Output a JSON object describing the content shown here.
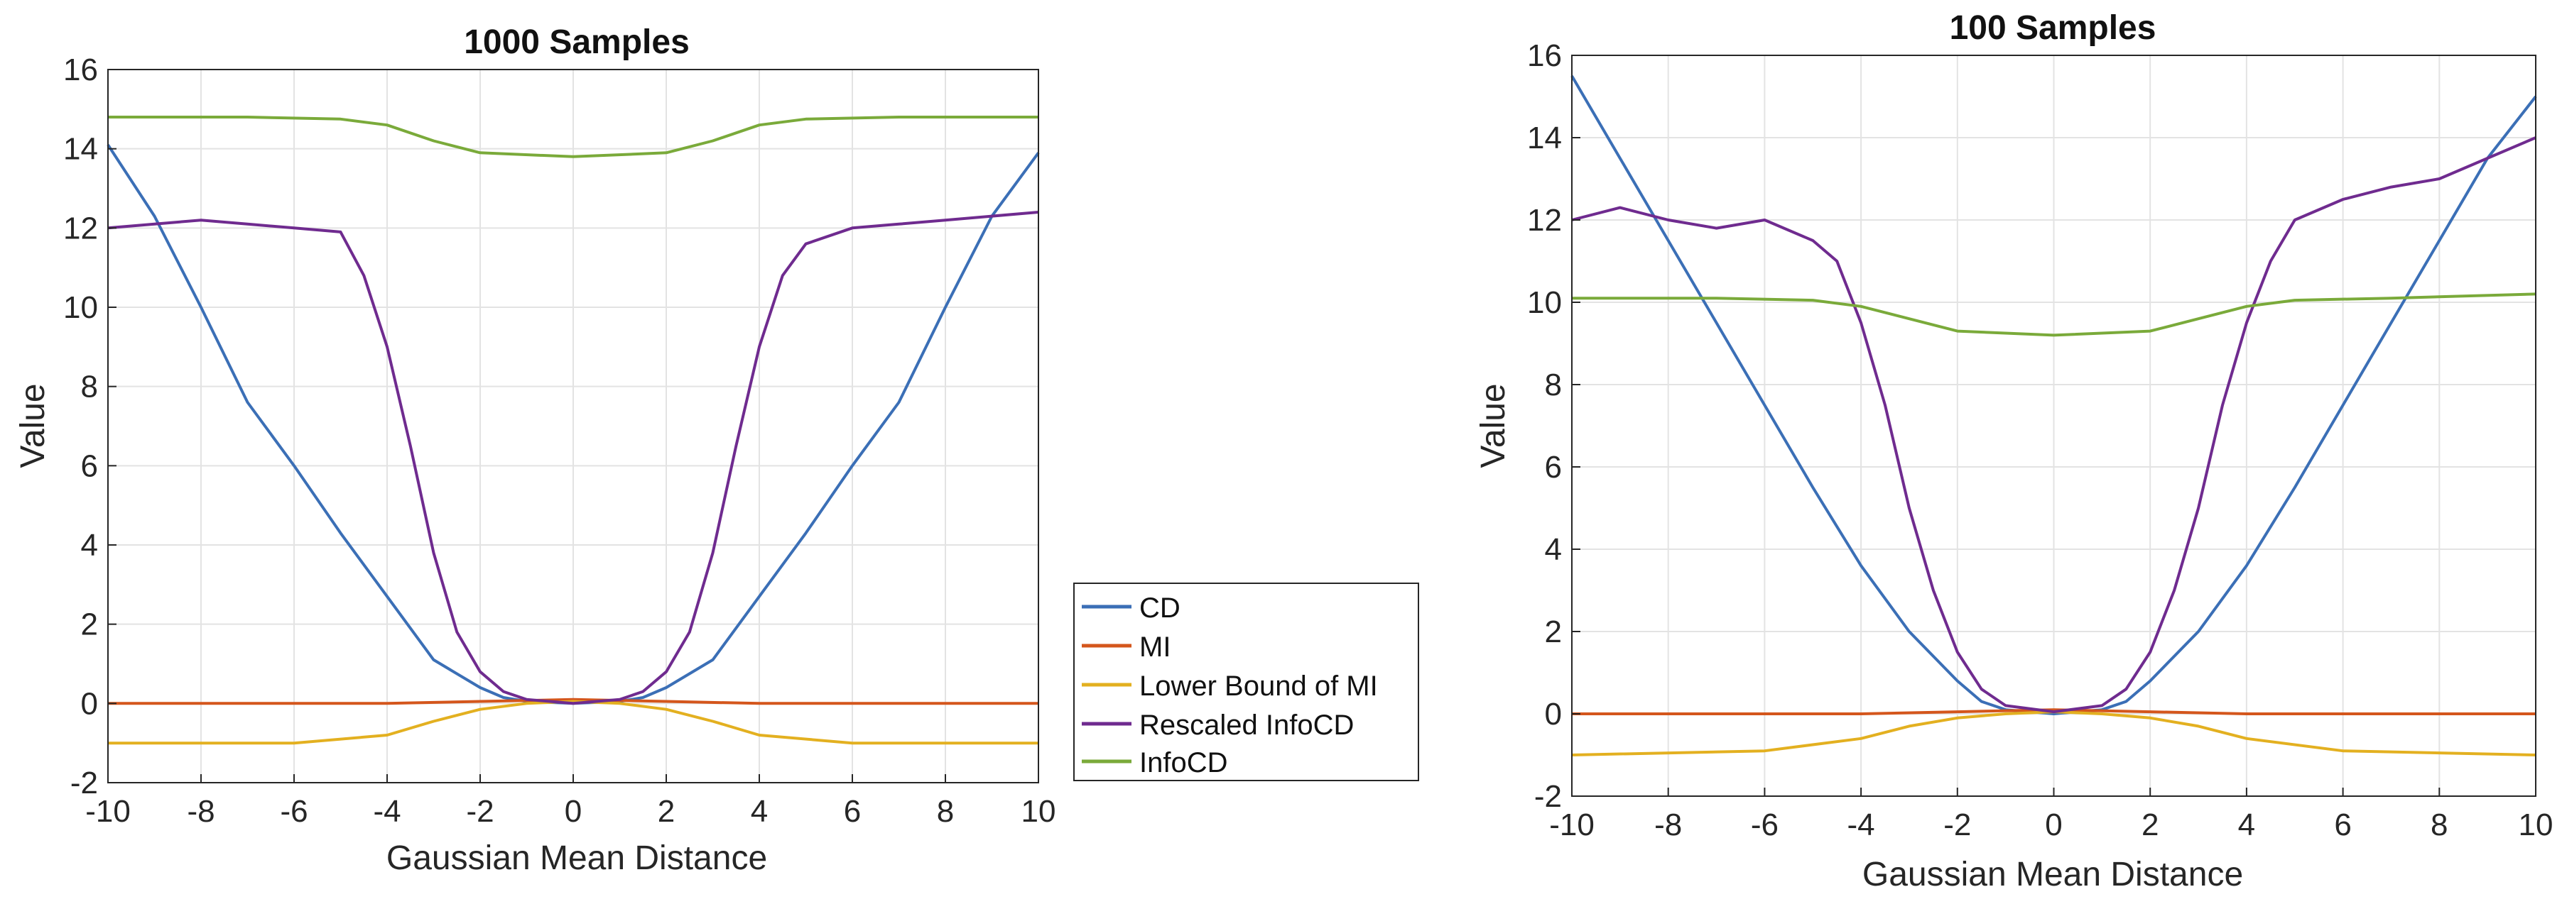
{
  "figure": {
    "background": "#ffffff"
  },
  "legend": {
    "entries": [
      {
        "label": "CD",
        "color": "#3b6fb6"
      },
      {
        "label": "MI",
        "color": "#d4561c"
      },
      {
        "label": "Lower Bound of MI",
        "color": "#e3b020"
      },
      {
        "label": "Rescaled InfoCD",
        "color": "#6f2b8f"
      },
      {
        "label": "InfoCD",
        "color": "#7aaa3a"
      }
    ]
  },
  "chart_data": [
    {
      "type": "line",
      "title": "1000 Samples",
      "xlabel": "Gaussian Mean Distance",
      "ylabel": "Value",
      "xlim": [
        -10,
        10
      ],
      "ylim": [
        -2,
        16
      ],
      "xticks": [
        -10,
        -8,
        -6,
        -4,
        -2,
        0,
        2,
        4,
        6,
        8,
        10
      ],
      "yticks": [
        -2,
        0,
        2,
        4,
        6,
        8,
        10,
        12,
        14,
        16
      ],
      "grid": true,
      "legend_position": "outside-right",
      "series": [
        {
          "name": "CD",
          "color": "#3b6fb6",
          "x": [
            -10,
            -9,
            -8,
            -7,
            -6,
            -5,
            -4,
            -3,
            -2,
            -1.5,
            -1,
            0,
            1,
            1.5,
            2,
            3,
            4,
            5,
            6,
            7,
            8,
            9,
            10
          ],
          "y": [
            14.1,
            12.3,
            10.0,
            7.6,
            6.0,
            4.3,
            2.7,
            1.1,
            0.4,
            0.15,
            0.05,
            0.0,
            0.05,
            0.15,
            0.4,
            1.1,
            2.7,
            4.3,
            6.0,
            7.6,
            10.0,
            12.3,
            13.9
          ]
        },
        {
          "name": "MI",
          "color": "#d4561c",
          "x": [
            -10,
            -4,
            -2,
            0,
            2,
            4,
            10
          ],
          "y": [
            0.0,
            0.0,
            0.05,
            0.1,
            0.05,
            0.0,
            0.0
          ]
        },
        {
          "name": "Lower Bound of MI",
          "color": "#e3b020",
          "x": [
            -10,
            -6,
            -4,
            -3,
            -2,
            -1,
            0,
            1,
            2,
            3,
            4,
            6,
            10
          ],
          "y": [
            -1.0,
            -1.0,
            -0.8,
            -0.45,
            -0.15,
            0.0,
            0.05,
            0.0,
            -0.15,
            -0.45,
            -0.8,
            -1.0,
            -1.0
          ]
        },
        {
          "name": "Rescaled InfoCD",
          "color": "#6f2b8f",
          "x": [
            -10,
            -9,
            -8,
            -7,
            -6,
            -5,
            -4.5,
            -4,
            -3.5,
            -3,
            -2.5,
            -2,
            -1.5,
            -1,
            0,
            1,
            1.5,
            2,
            2.5,
            3,
            3.5,
            4,
            4.5,
            5,
            6,
            7,
            8,
            9,
            10
          ],
          "y": [
            12.0,
            12.1,
            12.2,
            12.1,
            12.0,
            11.9,
            10.8,
            9.0,
            6.5,
            3.8,
            1.8,
            0.8,
            0.3,
            0.1,
            0.0,
            0.1,
            0.3,
            0.8,
            1.8,
            3.8,
            6.5,
            9.0,
            10.8,
            11.6,
            12.0,
            12.1,
            12.2,
            12.3,
            12.4
          ]
        },
        {
          "name": "InfoCD",
          "color": "#7aaa3a",
          "x": [
            -10,
            -7,
            -5,
            -4,
            -3,
            -2,
            0,
            2,
            3,
            4,
            5,
            7,
            10
          ],
          "y": [
            14.8,
            14.8,
            14.75,
            14.6,
            14.2,
            13.9,
            13.8,
            13.9,
            14.2,
            14.6,
            14.75,
            14.8,
            14.8
          ]
        }
      ]
    },
    {
      "type": "line",
      "title": "100 Samples",
      "xlabel": "Gaussian Mean Distance",
      "ylabel": "Value",
      "xlim": [
        -10,
        10
      ],
      "ylim": [
        -2,
        16
      ],
      "xticks": [
        -10,
        -8,
        -6,
        -4,
        -2,
        0,
        2,
        4,
        6,
        8,
        10
      ],
      "yticks": [
        -2,
        0,
        2,
        4,
        6,
        8,
        10,
        12,
        14,
        16
      ],
      "grid": true,
      "series": [
        {
          "name": "CD",
          "color": "#3b6fb6",
          "x": [
            -10,
            -9,
            -8,
            -7,
            -6,
            -5,
            -4,
            -3,
            -2,
            -1.5,
            -1,
            0,
            1,
            1.5,
            2,
            3,
            4,
            5,
            6,
            7,
            8,
            9,
            10
          ],
          "y": [
            15.5,
            13.5,
            11.5,
            9.5,
            7.5,
            5.5,
            3.6,
            2.0,
            0.8,
            0.3,
            0.1,
            0.0,
            0.1,
            0.3,
            0.8,
            2.0,
            3.6,
            5.5,
            7.5,
            9.5,
            11.5,
            13.5,
            15.0
          ]
        },
        {
          "name": "MI",
          "color": "#d4561c",
          "x": [
            -10,
            -4,
            -2,
            0,
            2,
            4,
            10
          ],
          "y": [
            0.0,
            0.0,
            0.05,
            0.1,
            0.05,
            0.0,
            0.0
          ]
        },
        {
          "name": "Lower Bound of MI",
          "color": "#e3b020",
          "x": [
            -10,
            -6,
            -4,
            -3,
            -2,
            -1,
            0,
            1,
            2,
            3,
            4,
            6,
            10
          ],
          "y": [
            -1.0,
            -0.9,
            -0.6,
            -0.3,
            -0.1,
            0.0,
            0.05,
            0.0,
            -0.1,
            -0.3,
            -0.6,
            -0.9,
            -1.0
          ]
        },
        {
          "name": "Rescaled InfoCD",
          "color": "#6f2b8f",
          "x": [
            -10,
            -9,
            -8,
            -7,
            -6,
            -5,
            -4.5,
            -4,
            -3.5,
            -3,
            -2.5,
            -2,
            -1.5,
            -1,
            0,
            1,
            1.5,
            2,
            2.5,
            3,
            3.5,
            4,
            4.5,
            5,
            6,
            7,
            8,
            9,
            10
          ],
          "y": [
            12.0,
            12.3,
            12.0,
            11.8,
            12.0,
            11.5,
            11.0,
            9.5,
            7.5,
            5.0,
            3.0,
            1.5,
            0.6,
            0.2,
            0.05,
            0.2,
            0.6,
            1.5,
            3.0,
            5.0,
            7.5,
            9.5,
            11.0,
            12.0,
            12.5,
            12.8,
            13.0,
            13.5,
            14.0
          ]
        },
        {
          "name": "InfoCD",
          "color": "#7aaa3a",
          "x": [
            -10,
            -7,
            -5,
            -4,
            -3,
            -2,
            0,
            2,
            3,
            4,
            5,
            7,
            10
          ],
          "y": [
            10.1,
            10.1,
            10.05,
            9.9,
            9.6,
            9.3,
            9.2,
            9.3,
            9.6,
            9.9,
            10.05,
            10.1,
            10.2
          ]
        }
      ]
    }
  ]
}
